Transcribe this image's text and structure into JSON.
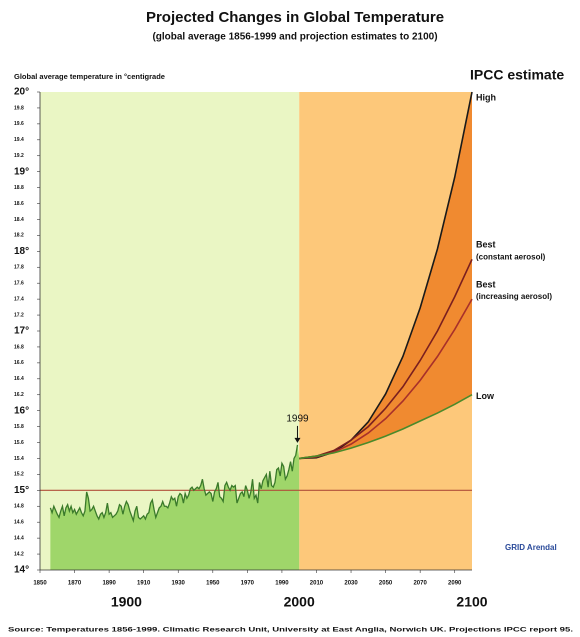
{
  "chart_data": {
    "type": "line",
    "title": "Projected Changes in Global Temperature",
    "subtitle": "(global average 1856-1999 and projection estimates to 2100)",
    "y_label": "Global average temperature in °centigrade",
    "legend_title": "IPCC estimate",
    "annotation": {
      "text": "1999",
      "x": 1999,
      "y": 15.57
    },
    "source": "Source: Temperatures 1856-1999. Climatic Research Unit, University at East Anglia, Norwich UK. Projections IPCC report 95.",
    "logo": "GRID Arendal",
    "xlim": [
      1850,
      2100
    ],
    "ylim": [
      14,
      20
    ],
    "xticks": [
      1850,
      1870,
      1890,
      1910,
      1930,
      1950,
      1970,
      1990,
      2010,
      2030,
      2050,
      2070,
      2090
    ],
    "xticks_major": [
      1900,
      2000,
      2100
    ],
    "yticks": [
      {
        "value": 14,
        "label": "14°"
      },
      14.2,
      14.4,
      14.6,
      14.8,
      {
        "value": 15,
        "label": "15°"
      },
      15.2,
      15.4,
      15.6,
      15.8,
      {
        "value": 16,
        "label": "16°"
      },
      16.2,
      16.4,
      16.6,
      16.8,
      {
        "value": 17,
        "label": "17°"
      },
      17.2,
      17.4,
      17.6,
      17.8,
      {
        "value": 18,
        "label": "18°"
      },
      18.2,
      18.4,
      18.6,
      18.8,
      {
        "value": 19,
        "label": "19°"
      },
      19.2,
      19.4,
      19.6,
      19.8,
      {
        "value": 20,
        "label": "20°"
      }
    ],
    "hline": 15,
    "hline_color": "#b0503a",
    "history": {
      "color": "#3a7a2a",
      "fill": "#9fd66a",
      "background": "#eaf6c4",
      "x": [
        1856,
        1857,
        1858,
        1859,
        1860,
        1861,
        1862,
        1863,
        1864,
        1865,
        1866,
        1867,
        1868,
        1869,
        1870,
        1871,
        1872,
        1873,
        1874,
        1875,
        1876,
        1877,
        1878,
        1879,
        1880,
        1881,
        1882,
        1883,
        1884,
        1885,
        1886,
        1887,
        1888,
        1889,
        1890,
        1891,
        1892,
        1893,
        1894,
        1895,
        1896,
        1897,
        1898,
        1899,
        1900,
        1901,
        1902,
        1903,
        1904,
        1905,
        1906,
        1907,
        1908,
        1909,
        1910,
        1911,
        1912,
        1913,
        1914,
        1915,
        1916,
        1917,
        1918,
        1919,
        1920,
        1921,
        1922,
        1923,
        1924,
        1925,
        1926,
        1927,
        1928,
        1929,
        1930,
        1931,
        1932,
        1933,
        1934,
        1935,
        1936,
        1937,
        1938,
        1939,
        1940,
        1941,
        1942,
        1943,
        1944,
        1945,
        1946,
        1947,
        1948,
        1949,
        1950,
        1951,
        1952,
        1953,
        1954,
        1955,
        1956,
        1957,
        1958,
        1959,
        1960,
        1961,
        1962,
        1963,
        1964,
        1965,
        1966,
        1967,
        1968,
        1969,
        1970,
        1971,
        1972,
        1973,
        1974,
        1975,
        1976,
        1977,
        1978,
        1979,
        1980,
        1981,
        1982,
        1983,
        1984,
        1985,
        1986,
        1987,
        1988,
        1989,
        1990,
        1991,
        1992,
        1993,
        1994,
        1995,
        1996,
        1997,
        1998,
        1999
      ],
      "values": [
        14.78,
        14.72,
        14.8,
        14.75,
        14.7,
        14.66,
        14.74,
        14.8,
        14.68,
        14.78,
        14.82,
        14.74,
        14.8,
        14.72,
        14.76,
        14.7,
        14.74,
        14.78,
        14.72,
        14.68,
        14.74,
        14.98,
        14.9,
        14.74,
        14.76,
        14.8,
        14.74,
        14.68,
        14.64,
        14.7,
        14.72,
        14.66,
        14.72,
        14.84,
        14.7,
        14.72,
        14.66,
        14.68,
        14.7,
        14.74,
        14.82,
        14.8,
        14.7,
        14.8,
        14.86,
        14.82,
        14.74,
        14.68,
        14.62,
        14.74,
        14.8,
        14.66,
        14.64,
        14.66,
        14.68,
        14.64,
        14.7,
        14.72,
        14.84,
        14.88,
        14.76,
        14.66,
        14.72,
        14.78,
        14.8,
        14.86,
        14.8,
        14.8,
        14.78,
        14.84,
        14.92,
        14.88,
        14.9,
        14.8,
        14.92,
        14.96,
        14.94,
        14.84,
        14.96,
        14.9,
        14.94,
        15.02,
        15.04,
        15.0,
        15.02,
        15.04,
        15.02,
        15.06,
        15.14,
        15.02,
        14.94,
        14.96,
        14.98,
        14.96,
        14.86,
        14.98,
        15.02,
        15.1,
        14.92,
        14.9,
        14.86,
        15.06,
        15.1,
        15.04,
        15.0,
        15.06,
        15.04,
        15.06,
        14.84,
        14.9,
        14.96,
        14.98,
        14.92,
        15.06,
        15.0,
        14.9,
        14.98,
        15.14,
        14.9,
        14.94,
        14.84,
        15.1,
        15.02,
        15.12,
        15.16,
        15.2,
        15.04,
        15.24,
        15.06,
        15.04,
        15.1,
        15.26,
        15.28,
        15.18,
        15.34,
        15.3,
        15.14,
        15.18,
        15.26,
        15.36,
        15.24,
        15.4,
        15.44,
        15.57
      ]
    },
    "projection_fill": "#f08a30",
    "projection_background": "#fdc87a",
    "projection_x": [
      2000,
      2010,
      2020,
      2030,
      2040,
      2050,
      2060,
      2070,
      2080,
      2090,
      2100
    ],
    "series": [
      {
        "name": "High",
        "color": "#1a1a1a",
        "values": [
          15.4,
          15.41,
          15.48,
          15.63,
          15.86,
          16.21,
          16.68,
          17.29,
          18.03,
          18.93,
          20.0
        ]
      },
      {
        "name": "Best",
        "note": "(constant aerosol)",
        "color": "#7a1f1f",
        "values": [
          15.4,
          15.43,
          15.5,
          15.63,
          15.8,
          16.03,
          16.3,
          16.63,
          17.0,
          17.43,
          17.9
        ]
      },
      {
        "name": "Best",
        "note": "(increasing aerosol)",
        "color": "#a8302a",
        "values": [
          15.4,
          15.42,
          15.48,
          15.58,
          15.72,
          15.9,
          16.12,
          16.38,
          16.68,
          17.02,
          17.4
        ]
      },
      {
        "name": "Low",
        "color": "#4a8a2a",
        "values": [
          15.4,
          15.43,
          15.47,
          15.53,
          15.6,
          15.68,
          15.77,
          15.87,
          15.97,
          16.08,
          16.2
        ]
      }
    ]
  }
}
